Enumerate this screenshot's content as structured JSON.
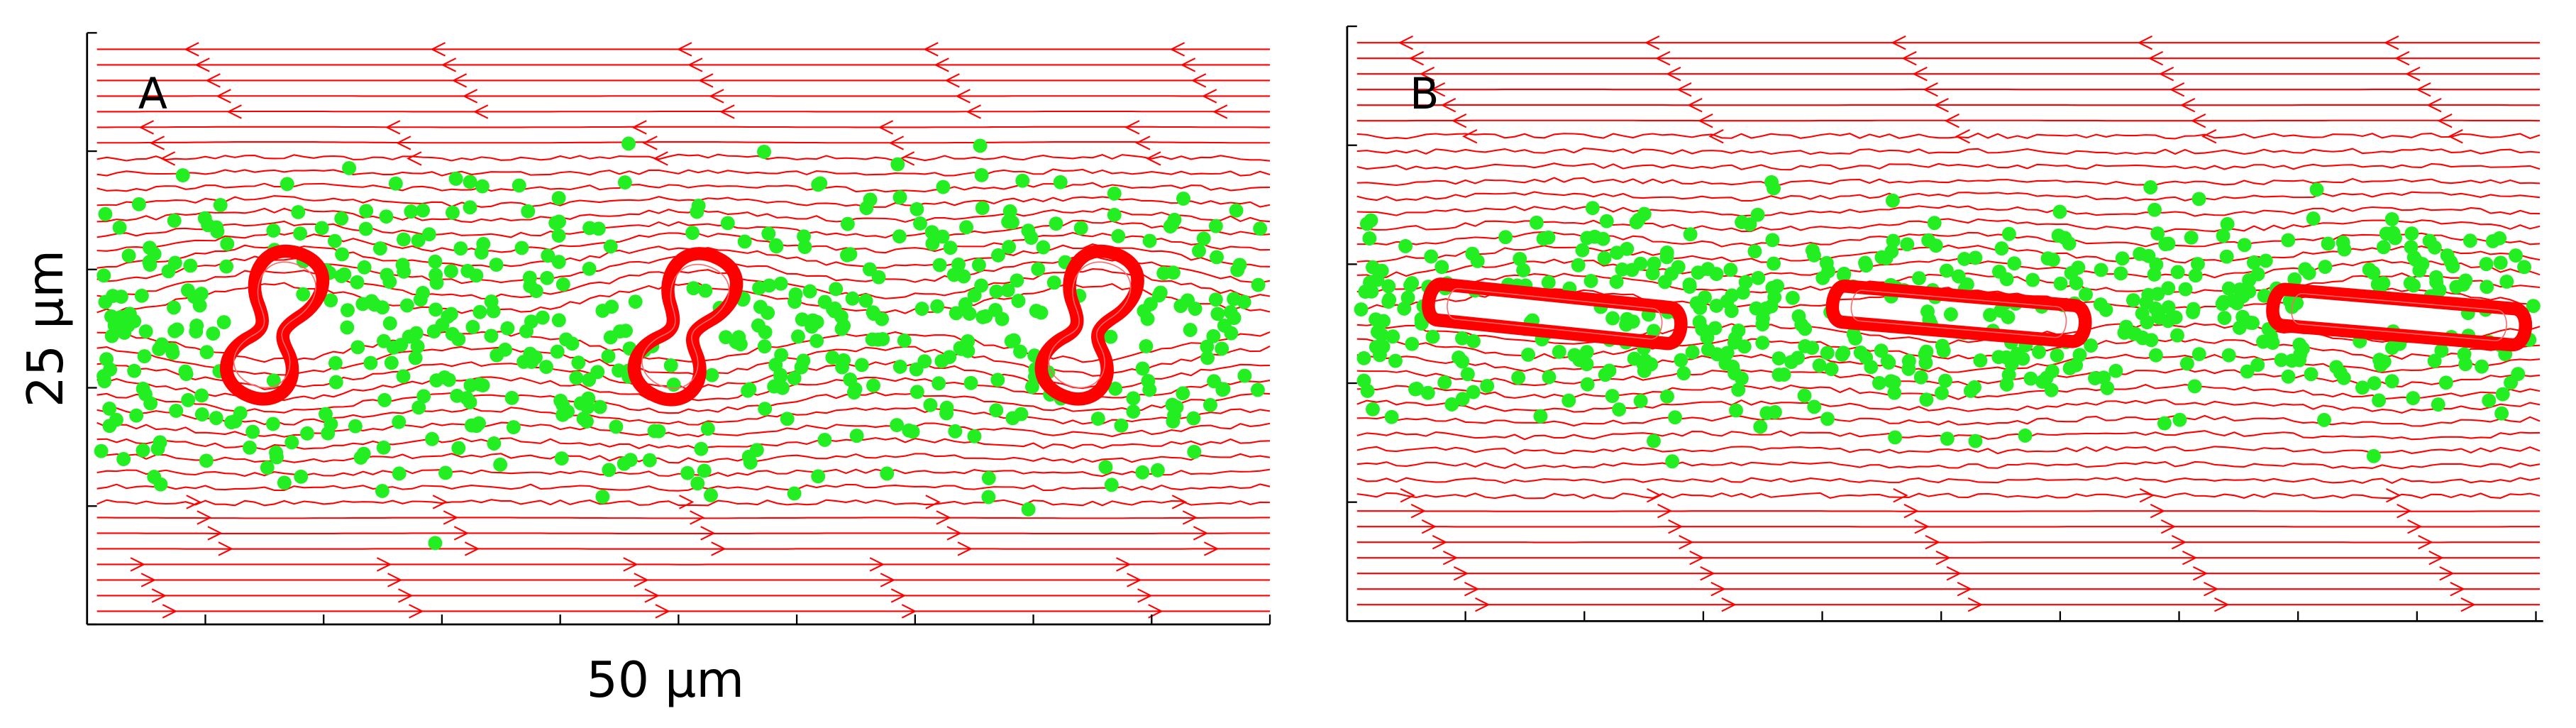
{
  "panels": [
    {
      "label": "A"
    },
    {
      "label": "B"
    }
  ],
  "axes": {
    "y_label": "25 μm",
    "x_label": "50 μm"
  }
}
